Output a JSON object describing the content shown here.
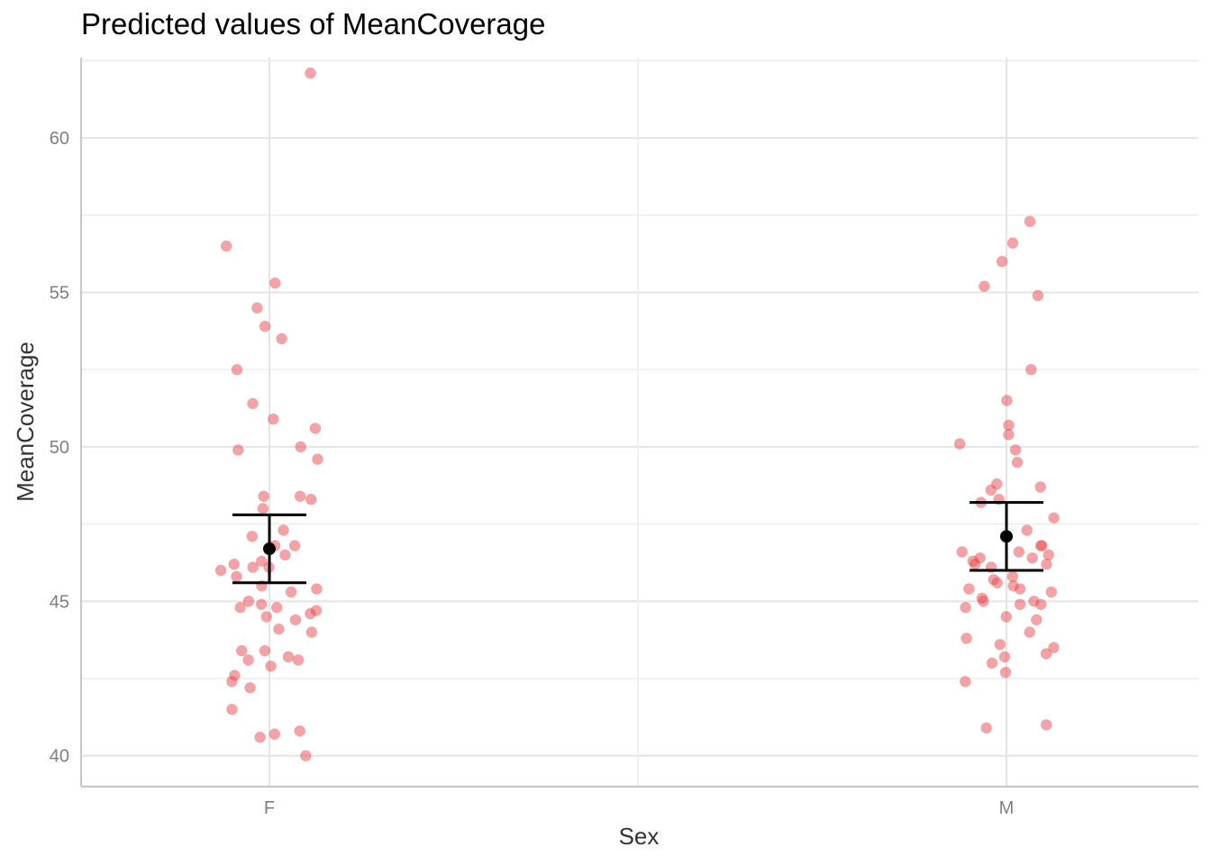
{
  "chart_data": {
    "type": "scatter",
    "title": "Predicted values of MeanCoverage",
    "xlabel": "Sex",
    "ylabel": "MeanCoverage",
    "categories": [
      "F",
      "M"
    ],
    "ylim": [
      39.0,
      62.6
    ],
    "yticks": [
      40,
      45,
      50,
      55,
      60
    ],
    "grid": true,
    "point_color": "#E8474C",
    "estimate_color": "#000000",
    "predictions": [
      {
        "category": "F",
        "estimate": 46.7,
        "ci_low": 45.6,
        "ci_high": 47.8
      },
      {
        "category": "M",
        "estimate": 47.1,
        "ci_low": 46.0,
        "ci_high": 48.2
      }
    ],
    "raw_points": [
      {
        "category": "F",
        "values": [
          62.1,
          56.5,
          55.3,
          54.5,
          53.9,
          53.5,
          52.5,
          51.4,
          50.9,
          50.6,
          50.0,
          49.9,
          49.6,
          48.4,
          48.4,
          48.3,
          48.0,
          47.3,
          47.1,
          46.8,
          46.8,
          46.5,
          46.3,
          46.2,
          46.1,
          46.1,
          46.0,
          45.8,
          45.5,
          45.4,
          45.3,
          45.0,
          44.9,
          44.8,
          44.8,
          44.7,
          44.6,
          44.5,
          44.4,
          44.1,
          44.0,
          43.4,
          43.4,
          43.2,
          43.1,
          43.1,
          42.9,
          42.6,
          42.4,
          42.2,
          41.5,
          40.8,
          40.7,
          40.6,
          40.0
        ]
      },
      {
        "category": "M",
        "values": [
          57.3,
          56.6,
          56.0,
          55.2,
          54.9,
          52.5,
          51.5,
          50.7,
          50.4,
          50.1,
          49.9,
          49.5,
          48.8,
          48.7,
          48.6,
          48.3,
          48.2,
          47.7,
          47.3,
          46.8,
          46.8,
          46.6,
          46.6,
          46.5,
          46.4,
          46.4,
          46.3,
          46.2,
          46.2,
          46.1,
          45.8,
          45.7,
          45.6,
          45.5,
          45.4,
          45.4,
          45.3,
          45.1,
          45.0,
          45.0,
          44.9,
          44.9,
          44.8,
          44.5,
          44.4,
          44.0,
          43.8,
          43.6,
          43.5,
          43.3,
          43.2,
          43.0,
          42.7,
          42.4,
          41.0,
          40.9
        ]
      }
    ]
  }
}
